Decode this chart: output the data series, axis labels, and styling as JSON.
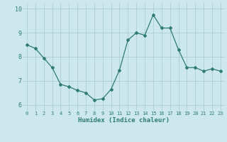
{
  "x": [
    0,
    1,
    2,
    3,
    4,
    5,
    6,
    7,
    8,
    9,
    10,
    11,
    12,
    13,
    14,
    15,
    16,
    17,
    18,
    19,
    20,
    21,
    22,
    23
  ],
  "y": [
    8.5,
    8.35,
    7.95,
    7.55,
    6.85,
    6.75,
    6.6,
    6.5,
    6.2,
    6.25,
    6.65,
    7.45,
    8.7,
    9.0,
    8.9,
    9.75,
    9.2,
    9.2,
    8.3,
    7.55,
    7.55,
    7.4,
    7.5,
    7.4
  ],
  "line_color": "#2e7d6e",
  "marker": "D",
  "marker_size": 2,
  "bg_color": "#cce8ec",
  "grid_color": "#aacdd4",
  "xlabel": "Humidex (Indice chaleur)",
  "xlim": [
    -0.5,
    23.5
  ],
  "ylim": [
    5.75,
    10.25
  ],
  "yticks": [
    6,
    7,
    8,
    9,
    10
  ],
  "xticks": [
    0,
    1,
    2,
    3,
    4,
    5,
    6,
    7,
    8,
    9,
    10,
    11,
    12,
    13,
    14,
    15,
    16,
    17,
    18,
    19,
    20,
    21,
    22,
    23
  ]
}
